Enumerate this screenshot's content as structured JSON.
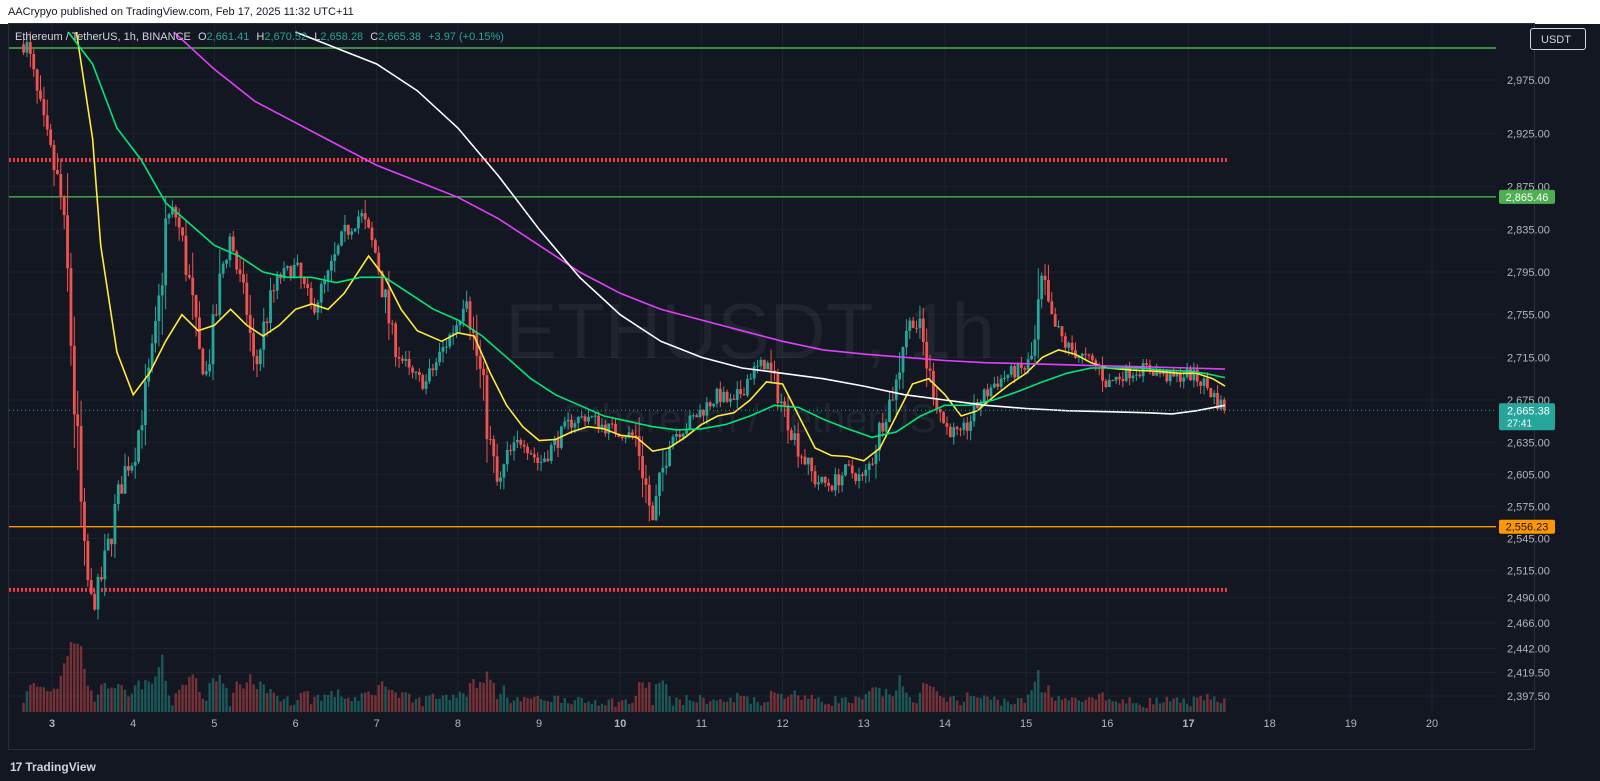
{
  "header": {
    "published": "AACrypyo published on TradingView.com, Feb 17, 2025 11:32 UTC+11"
  },
  "legend": {
    "symbol": "Ethereum / TetherUS, 1h, BINANCE",
    "o_label": "O",
    "o_value": "2,661.41",
    "h_label": "H",
    "h_value": "2,670.52",
    "l_label": "L",
    "l_value": "2,658.28",
    "c_label": "C",
    "c_value": "2,665.38",
    "change": "+3.97 (+0.15%)"
  },
  "currency_button": "USDT",
  "watermark": {
    "main": "ETHUSDT, 1h",
    "sub": "Ethereum / TetherUS"
  },
  "footer": {
    "logo_mark": "17",
    "brand": "TradingView"
  },
  "colors": {
    "background": "#131722",
    "up": "#26a69a",
    "down": "#ef5350",
    "ema_yellow": "#ffeb3b",
    "ema_green": "#00e676",
    "ma_magenta": "#e040fb",
    "ma_white": "#ffffff",
    "hline_green": "#4caf50",
    "hline_red": "#f23645",
    "hline_orange": "#ff9800"
  },
  "chart_data": {
    "type": "candlestick",
    "ylim": [
      2385,
      3010
    ],
    "y_ticks": [
      2397.5,
      2419.5,
      2442,
      2466,
      2490,
      2515,
      2545,
      2575,
      2605,
      2635,
      2675,
      2715,
      2755,
      2795,
      2835,
      2875,
      2925,
      2975
    ],
    "y_tick_labels": [
      "2,397.50",
      "2,419.50",
      "2,442.00",
      "2,466.00",
      "2,490.00",
      "2,515.00",
      "2,545.00",
      "2,575.00",
      "2,605.00",
      "2,635.00",
      "2,675.00",
      "2,715.00",
      "2,755.00",
      "2,795.00",
      "2,835.00",
      "2,875.00",
      "2,925.00",
      "2,975.00"
    ],
    "x_ticks": [
      3,
      4,
      5,
      6,
      7,
      8,
      9,
      10,
      11,
      12,
      13,
      14,
      15,
      16,
      17,
      18,
      19,
      20
    ],
    "x_tick_labels": [
      "3",
      "4",
      "5",
      "6",
      "7",
      "8",
      "9",
      "10",
      "11",
      "12",
      "13",
      "14",
      "15",
      "16",
      "17",
      "18",
      "19",
      "20"
    ],
    "x_bold": [
      "3",
      "10",
      "17"
    ],
    "xlim": [
      2.55,
      21.25
    ],
    "last_candle_x": 17.45,
    "horizontal_lines": [
      {
        "value": 3005,
        "style": "solid",
        "color": "#4caf50",
        "label": ""
      },
      {
        "value": 2865.46,
        "style": "solid",
        "color": "#4caf50",
        "label": "2,865.46"
      },
      {
        "value": 2900,
        "style": "dotted",
        "color": "#f23645",
        "label": ""
      },
      {
        "value": 2556.23,
        "style": "solid",
        "color": "#ff9800",
        "label": "2,556.23"
      },
      {
        "value": 2497,
        "style": "dotted",
        "color": "#f23645",
        "label": ""
      }
    ],
    "last_price_label": "2,665.38",
    "last_price_countdown": "27:41",
    "last_price": 2665.38,
    "price_path": [
      [
        2.55,
        3015
      ],
      [
        2.7,
        3005
      ],
      [
        2.8,
        2965
      ],
      [
        2.9,
        2930
      ],
      [
        3.0,
        2900
      ],
      [
        3.1,
        2870
      ],
      [
        3.2,
        2780
      ],
      [
        3.3,
        2640
      ],
      [
        3.4,
        2520
      ],
      [
        3.5,
        2480
      ],
      [
        3.6,
        2505
      ],
      [
        3.7,
        2540
      ],
      [
        3.8,
        2580
      ],
      [
        3.9,
        2610
      ],
      [
        4.0,
        2620
      ],
      [
        4.1,
        2660
      ],
      [
        4.2,
        2700
      ],
      [
        4.3,
        2745
      ],
      [
        4.4,
        2840
      ],
      [
        4.5,
        2855
      ],
      [
        4.6,
        2825
      ],
      [
        4.7,
        2780
      ],
      [
        4.8,
        2720
      ],
      [
        4.9,
        2700
      ],
      [
        5.0,
        2745
      ],
      [
        5.1,
        2800
      ],
      [
        5.2,
        2830
      ],
      [
        5.3,
        2790
      ],
      [
        5.4,
        2760
      ],
      [
        5.5,
        2700
      ],
      [
        5.6,
        2740
      ],
      [
        5.7,
        2770
      ],
      [
        5.8,
        2790
      ],
      [
        6.0,
        2800
      ],
      [
        6.2,
        2760
      ],
      [
        6.4,
        2790
      ],
      [
        6.6,
        2830
      ],
      [
        6.8,
        2850
      ],
      [
        7.0,
        2810
      ],
      [
        7.1,
        2770
      ],
      [
        7.2,
        2730
      ],
      [
        7.4,
        2700
      ],
      [
        7.6,
        2690
      ],
      [
        7.8,
        2720
      ],
      [
        8.0,
        2750
      ],
      [
        8.1,
        2780
      ],
      [
        8.2,
        2730
      ],
      [
        8.3,
        2690
      ],
      [
        8.4,
        2630
      ],
      [
        8.5,
        2590
      ],
      [
        8.6,
        2620
      ],
      [
        8.8,
        2640
      ],
      [
        9.0,
        2615
      ],
      [
        9.2,
        2635
      ],
      [
        9.4,
        2655
      ],
      [
        9.6,
        2660
      ],
      [
        9.8,
        2650
      ],
      [
        10.0,
        2645
      ],
      [
        10.2,
        2640
      ],
      [
        10.4,
        2560
      ],
      [
        10.5,
        2600
      ],
      [
        10.6,
        2640
      ],
      [
        10.8,
        2650
      ],
      [
        11.0,
        2665
      ],
      [
        11.2,
        2680
      ],
      [
        11.4,
        2670
      ],
      [
        11.6,
        2700
      ],
      [
        11.8,
        2710
      ],
      [
        12.0,
        2670
      ],
      [
        12.2,
        2630
      ],
      [
        12.4,
        2600
      ],
      [
        12.6,
        2595
      ],
      [
        12.8,
        2610
      ],
      [
        13.0,
        2600
      ],
      [
        13.1,
        2620
      ],
      [
        13.2,
        2650
      ],
      [
        13.4,
        2690
      ],
      [
        13.5,
        2740
      ],
      [
        13.6,
        2750
      ],
      [
        13.7,
        2740
      ],
      [
        13.8,
        2700
      ],
      [
        14.0,
        2650
      ],
      [
        14.2,
        2640
      ],
      [
        14.4,
        2670
      ],
      [
        14.6,
        2690
      ],
      [
        14.8,
        2700
      ],
      [
        15.0,
        2705
      ],
      [
        15.1,
        2720
      ],
      [
        15.2,
        2790
      ],
      [
        15.3,
        2750
      ],
      [
        15.5,
        2725
      ],
      [
        15.7,
        2715
      ],
      [
        15.9,
        2705
      ],
      [
        16.0,
        2690
      ],
      [
        16.2,
        2700
      ],
      [
        16.5,
        2705
      ],
      [
        16.8,
        2695
      ],
      [
        17.0,
        2700
      ],
      [
        17.2,
        2690
      ],
      [
        17.35,
        2675
      ],
      [
        17.45,
        2665
      ]
    ],
    "indicators": [
      {
        "color": "#ffeb3b",
        "points": [
          [
            3.3,
            3020
          ],
          [
            3.5,
            2920
          ],
          [
            3.6,
            2820
          ],
          [
            3.8,
            2720
          ],
          [
            4.0,
            2680
          ],
          [
            4.2,
            2700
          ],
          [
            4.4,
            2730
          ],
          [
            4.6,
            2755
          ],
          [
            4.8,
            2740
          ],
          [
            5.0,
            2745
          ],
          [
            5.2,
            2760
          ],
          [
            5.4,
            2745
          ],
          [
            5.6,
            2735
          ],
          [
            5.8,
            2745
          ],
          [
            6.0,
            2760
          ],
          [
            6.2,
            2765
          ],
          [
            6.4,
            2760
          ],
          [
            6.6,
            2775
          ],
          [
            6.9,
            2810
          ],
          [
            7.1,
            2790
          ],
          [
            7.3,
            2760
          ],
          [
            7.5,
            2740
          ],
          [
            7.8,
            2730
          ],
          [
            8.0,
            2738
          ],
          [
            8.2,
            2735
          ],
          [
            8.4,
            2700
          ],
          [
            8.6,
            2670
          ],
          [
            8.8,
            2650
          ],
          [
            9.0,
            2637
          ],
          [
            9.2,
            2638
          ],
          [
            9.4,
            2645
          ],
          [
            9.6,
            2650
          ],
          [
            9.8,
            2648
          ],
          [
            10.0,
            2642
          ],
          [
            10.2,
            2640
          ],
          [
            10.4,
            2627
          ],
          [
            10.6,
            2630
          ],
          [
            10.8,
            2640
          ],
          [
            11.0,
            2652
          ],
          [
            11.2,
            2660
          ],
          [
            11.4,
            2663
          ],
          [
            11.6,
            2675
          ],
          [
            11.8,
            2692
          ],
          [
            12.0,
            2690
          ],
          [
            12.2,
            2660
          ],
          [
            12.4,
            2630
          ],
          [
            12.6,
            2623
          ],
          [
            12.8,
            2622
          ],
          [
            13.0,
            2618
          ],
          [
            13.2,
            2630
          ],
          [
            13.4,
            2660
          ],
          [
            13.6,
            2690
          ],
          [
            13.8,
            2695
          ],
          [
            14.0,
            2680
          ],
          [
            14.2,
            2660
          ],
          [
            14.4,
            2665
          ],
          [
            14.6,
            2678
          ],
          [
            14.8,
            2690
          ],
          [
            15.0,
            2700
          ],
          [
            15.2,
            2715
          ],
          [
            15.4,
            2722
          ],
          [
            15.6,
            2718
          ],
          [
            15.8,
            2710
          ],
          [
            16.0,
            2705
          ],
          [
            16.3,
            2703
          ],
          [
            16.6,
            2702
          ],
          [
            16.9,
            2700
          ],
          [
            17.1,
            2700
          ],
          [
            17.3,
            2695
          ],
          [
            17.45,
            2688
          ]
        ]
      },
      {
        "color": "#00e676",
        "points": [
          [
            3.2,
            3020
          ],
          [
            3.5,
            2990
          ],
          [
            3.8,
            2930
          ],
          [
            4.1,
            2900
          ],
          [
            4.4,
            2860
          ],
          [
            4.7,
            2840
          ],
          [
            5.0,
            2820
          ],
          [
            5.3,
            2810
          ],
          [
            5.6,
            2795
          ],
          [
            5.9,
            2790
          ],
          [
            6.2,
            2790
          ],
          [
            6.5,
            2785
          ],
          [
            6.8,
            2790
          ],
          [
            7.1,
            2790
          ],
          [
            7.4,
            2775
          ],
          [
            7.7,
            2760
          ],
          [
            8.0,
            2750
          ],
          [
            8.3,
            2735
          ],
          [
            8.6,
            2715
          ],
          [
            8.9,
            2695
          ],
          [
            9.2,
            2680
          ],
          [
            9.5,
            2670
          ],
          [
            9.8,
            2660
          ],
          [
            10.1,
            2655
          ],
          [
            10.4,
            2650
          ],
          [
            10.7,
            2647
          ],
          [
            11.0,
            2648
          ],
          [
            11.3,
            2652
          ],
          [
            11.6,
            2660
          ],
          [
            11.9,
            2670
          ],
          [
            12.2,
            2668
          ],
          [
            12.5,
            2657
          ],
          [
            12.8,
            2648
          ],
          [
            13.1,
            2640
          ],
          [
            13.4,
            2645
          ],
          [
            13.7,
            2660
          ],
          [
            14.0,
            2670
          ],
          [
            14.3,
            2670
          ],
          [
            14.6,
            2675
          ],
          [
            14.9,
            2683
          ],
          [
            15.2,
            2692
          ],
          [
            15.5,
            2700
          ],
          [
            15.8,
            2705
          ],
          [
            16.1,
            2705
          ],
          [
            16.4,
            2705
          ],
          [
            16.7,
            2703
          ],
          [
            17.0,
            2702
          ],
          [
            17.2,
            2700
          ],
          [
            17.45,
            2696
          ]
        ]
      },
      {
        "color": "#e040fb",
        "points": [
          [
            4.5,
            3020
          ],
          [
            5.0,
            2985
          ],
          [
            5.5,
            2955
          ],
          [
            6.0,
            2935
          ],
          [
            6.5,
            2915
          ],
          [
            7.0,
            2895
          ],
          [
            7.5,
            2880
          ],
          [
            8.0,
            2865
          ],
          [
            8.5,
            2845
          ],
          [
            9.0,
            2820
          ],
          [
            9.5,
            2795
          ],
          [
            10.0,
            2775
          ],
          [
            10.5,
            2760
          ],
          [
            11.0,
            2750
          ],
          [
            11.5,
            2740
          ],
          [
            12.0,
            2730
          ],
          [
            12.5,
            2722
          ],
          [
            13.0,
            2718
          ],
          [
            13.5,
            2715
          ],
          [
            14.0,
            2712
          ],
          [
            14.5,
            2710
          ],
          [
            15.0,
            2709
          ],
          [
            15.5,
            2708
          ],
          [
            16.0,
            2707
          ],
          [
            16.5,
            2706
          ],
          [
            17.0,
            2705
          ],
          [
            17.45,
            2704
          ]
        ]
      },
      {
        "color": "#ffffff",
        "points": [
          [
            6.0,
            3020
          ],
          [
            6.5,
            3005
          ],
          [
            7.0,
            2990
          ],
          [
            7.5,
            2965
          ],
          [
            8.0,
            2930
          ],
          [
            8.5,
            2885
          ],
          [
            9.0,
            2835
          ],
          [
            9.5,
            2790
          ],
          [
            10.0,
            2755
          ],
          [
            10.5,
            2730
          ],
          [
            11.0,
            2715
          ],
          [
            11.5,
            2705
          ],
          [
            12.0,
            2700
          ],
          [
            12.5,
            2695
          ],
          [
            13.0,
            2688
          ],
          [
            13.5,
            2680
          ],
          [
            14.0,
            2675
          ],
          [
            14.5,
            2670
          ],
          [
            15.0,
            2667
          ],
          [
            15.5,
            2665
          ],
          [
            16.0,
            2664
          ],
          [
            16.5,
            2663
          ],
          [
            16.8,
            2662
          ],
          [
            17.1,
            2665
          ],
          [
            17.45,
            2670
          ]
        ]
      }
    ]
  }
}
